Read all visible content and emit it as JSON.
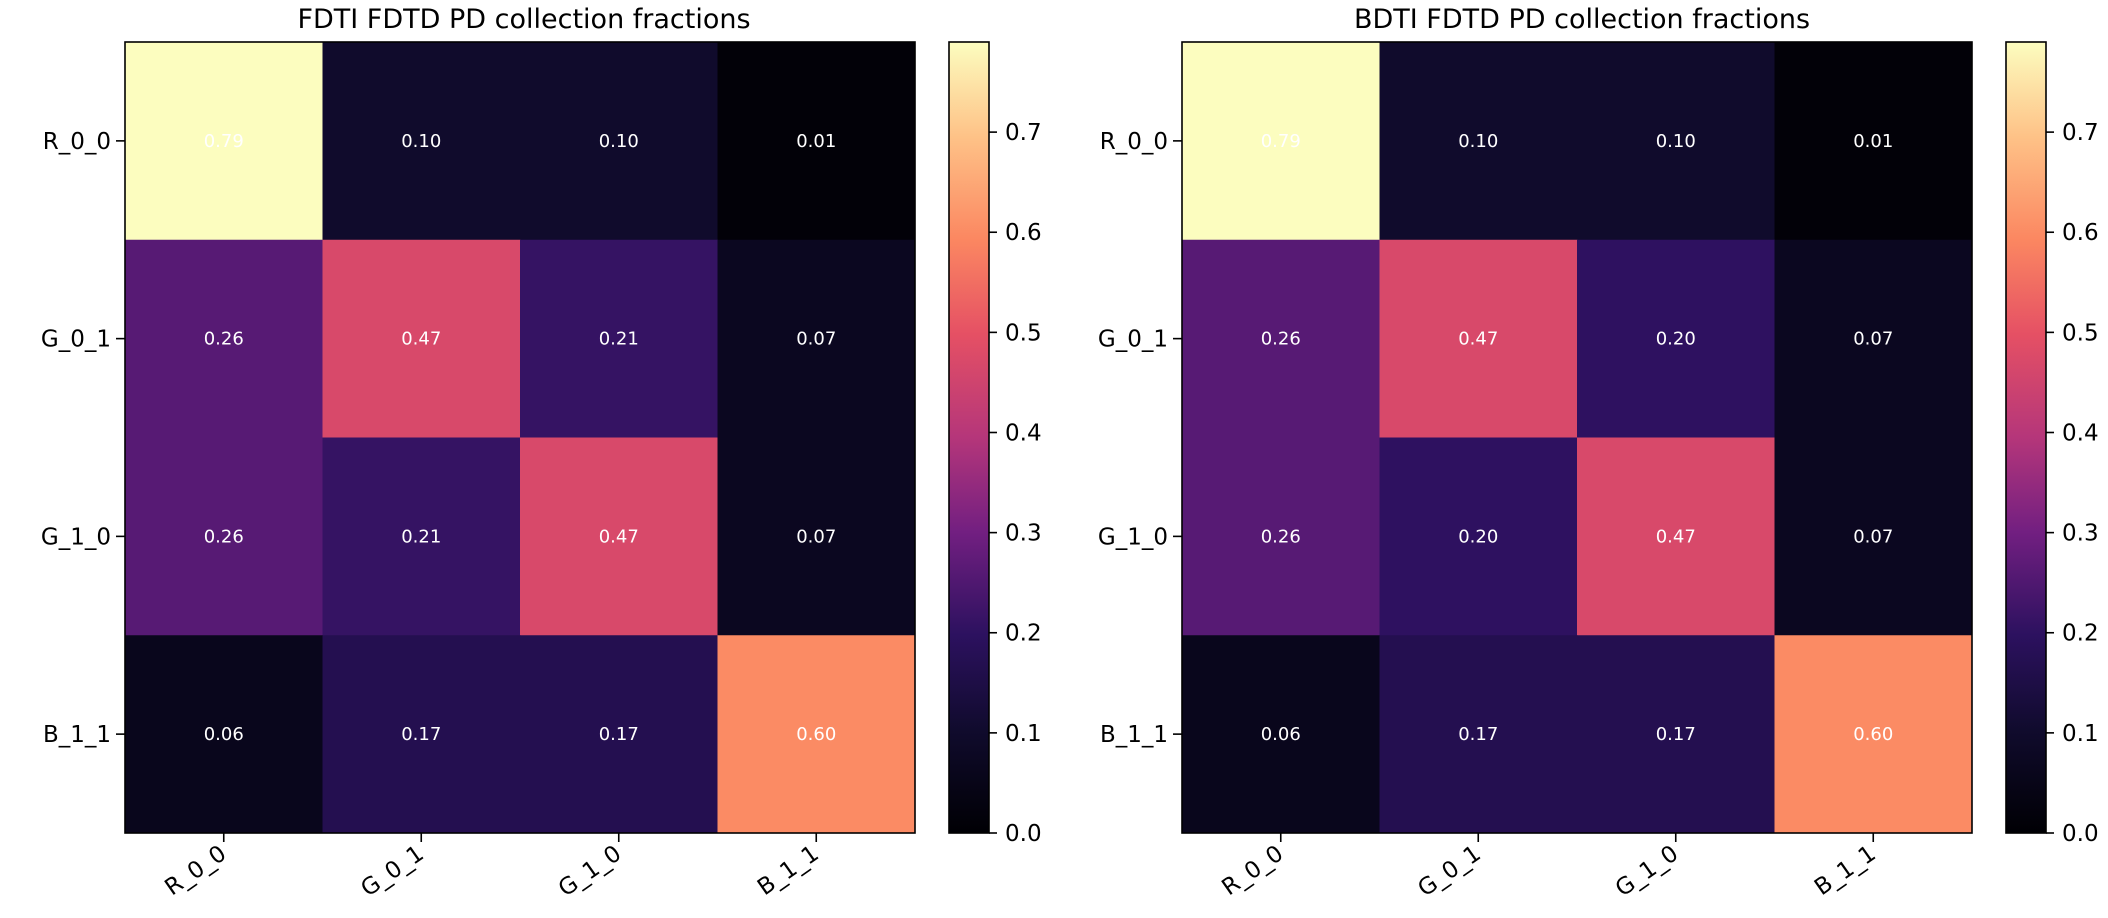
{
  "chart_data": [
    {
      "type": "heatmap",
      "title": "FDTI FDTD PD collection fractions",
      "rows": [
        "R_0_0",
        "G_0_1",
        "G_1_0",
        "B_1_1"
      ],
      "columns": [
        "R_0_0",
        "G_0_1",
        "G_1_0",
        "B_1_1"
      ],
      "values": [
        [
          0.79,
          0.1,
          0.1,
          0.01
        ],
        [
          0.26,
          0.47,
          0.21,
          0.07
        ],
        [
          0.26,
          0.21,
          0.47,
          0.07
        ],
        [
          0.06,
          0.17,
          0.17,
          0.6
        ]
      ],
      "value_labels": [
        [
          "0.79",
          "0.10",
          "0.10",
          "0.01"
        ],
        [
          "0.26",
          "0.47",
          "0.21",
          "0.07"
        ],
        [
          "0.26",
          "0.21",
          "0.47",
          "0.07"
        ],
        [
          "0.06",
          "0.17",
          "0.17",
          "0.60"
        ]
      ],
      "colormap": "magma",
      "colorbar": {
        "range": [
          0.0,
          0.79
        ],
        "ticks": [
          0.0,
          0.1,
          0.2,
          0.3,
          0.4,
          0.5,
          0.6,
          0.7
        ],
        "tick_labels": [
          "0.0",
          "0.1",
          "0.2",
          "0.3",
          "0.4",
          "0.5",
          "0.6",
          "0.7"
        ]
      },
      "grid": false
    },
    {
      "type": "heatmap",
      "title": "BDTI FDTD PD collection fractions",
      "rows": [
        "R_0_0",
        "G_0_1",
        "G_1_0",
        "B_1_1"
      ],
      "columns": [
        "R_0_0",
        "G_0_1",
        "G_1_0",
        "B_1_1"
      ],
      "values": [
        [
          0.79,
          0.1,
          0.1,
          0.01
        ],
        [
          0.26,
          0.47,
          0.2,
          0.07
        ],
        [
          0.26,
          0.2,
          0.47,
          0.07
        ],
        [
          0.06,
          0.17,
          0.17,
          0.6
        ]
      ],
      "value_labels": [
        [
          "0.79",
          "0.10",
          "0.10",
          "0.01"
        ],
        [
          "0.26",
          "0.47",
          "0.20",
          "0.07"
        ],
        [
          "0.26",
          "0.20",
          "0.47",
          "0.07"
        ],
        [
          "0.06",
          "0.17",
          "0.17",
          "0.60"
        ]
      ],
      "colormap": "magma",
      "colorbar": {
        "range": [
          0.0,
          0.79
        ],
        "ticks": [
          0.0,
          0.1,
          0.2,
          0.3,
          0.4,
          0.5,
          0.6,
          0.7
        ],
        "tick_labels": [
          "0.0",
          "0.1",
          "0.2",
          "0.3",
          "0.4",
          "0.5",
          "0.6",
          "0.7"
        ]
      },
      "grid": false
    }
  ]
}
